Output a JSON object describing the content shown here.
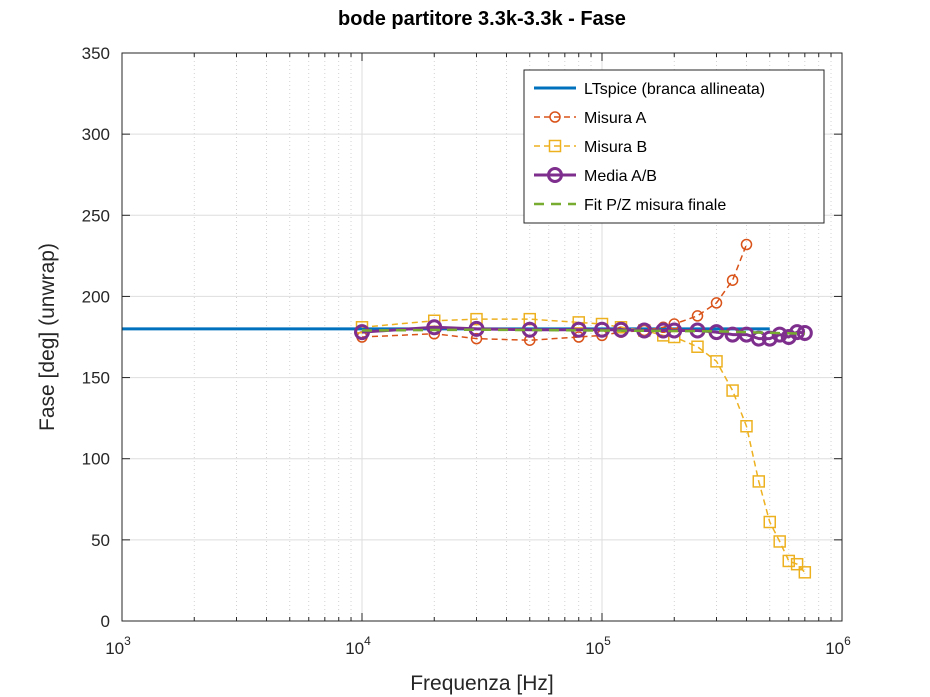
{
  "chart_data": {
    "type": "line",
    "title": "bode partitore 3.3k-3.3k - Fase",
    "xlabel": "Frequenza [Hz]",
    "ylabel": "Fase [deg] (unwrap)",
    "xscale": "log",
    "xlim": [
      1000,
      1000000
    ],
    "ylim": [
      0,
      350
    ],
    "grid": true,
    "minor_grid_x": true,
    "legend_position": "top-right",
    "x_ticks": [
      {
        "value": 1000,
        "base": "10",
        "exp": "3"
      },
      {
        "value": 10000,
        "base": "10",
        "exp": "4"
      },
      {
        "value": 100000,
        "base": "10",
        "exp": "5"
      },
      {
        "value": 1000000,
        "base": "10",
        "exp": "6"
      }
    ],
    "y_ticks": [
      0,
      50,
      100,
      150,
      200,
      250,
      300,
      350
    ],
    "series": [
      {
        "name": "LTspice (branca allineata)",
        "color": "#0072BD",
        "line": "solid",
        "width": 3,
        "marker": "none",
        "x": [
          1000,
          500000
        ],
        "y": [
          180,
          180
        ]
      },
      {
        "name": "Misura A",
        "color": "#D95319",
        "line": "dashed",
        "width": 1.5,
        "marker": "circle",
        "x": [
          10000,
          20000,
          30000,
          50000,
          80000,
          100000,
          120000,
          150000,
          180000,
          200000,
          250000,
          300000,
          350000,
          400000
        ],
        "y": [
          175,
          177,
          174,
          173,
          175,
          176,
          178,
          179,
          181,
          183,
          188,
          196,
          210,
          232
        ]
      },
      {
        "name": "Misura B",
        "color": "#EDB120",
        "line": "dashed",
        "width": 1.5,
        "marker": "square",
        "x": [
          10000,
          20000,
          30000,
          50000,
          80000,
          100000,
          120000,
          150000,
          180000,
          200000,
          250000,
          300000,
          350000,
          400000,
          450000,
          500000,
          550000,
          600000,
          650000,
          700000
        ],
        "y": [
          181,
          185,
          186,
          186,
          184,
          183,
          181,
          179,
          176,
          175,
          169,
          160,
          142,
          120,
          86,
          61,
          49,
          37,
          35,
          30
        ]
      },
      {
        "name": "Media A/B",
        "color": "#7E2F8E",
        "line": "solid",
        "width": 3,
        "marker": "circle-large",
        "x": [
          10000,
          20000,
          30000,
          50000,
          80000,
          100000,
          120000,
          150000,
          180000,
          200000,
          250000,
          300000,
          350000,
          400000,
          450000,
          500000,
          550000,
          600000,
          650000,
          700000
        ],
        "y": [
          178,
          181,
          180,
          179.5,
          179.5,
          179.5,
          179.5,
          179,
          179,
          179,
          179,
          178,
          176.5,
          176.5,
          174,
          174,
          176.5,
          175,
          178,
          177.5
        ]
      },
      {
        "name": "Fit P/Z misura finale",
        "color": "#77AC30",
        "line": "dashed",
        "width": 2.5,
        "marker": "none",
        "x": [
          10000,
          30000,
          100000,
          300000,
          700000
        ],
        "y": [
          179,
          179.5,
          179,
          178.5,
          177
        ]
      }
    ]
  }
}
